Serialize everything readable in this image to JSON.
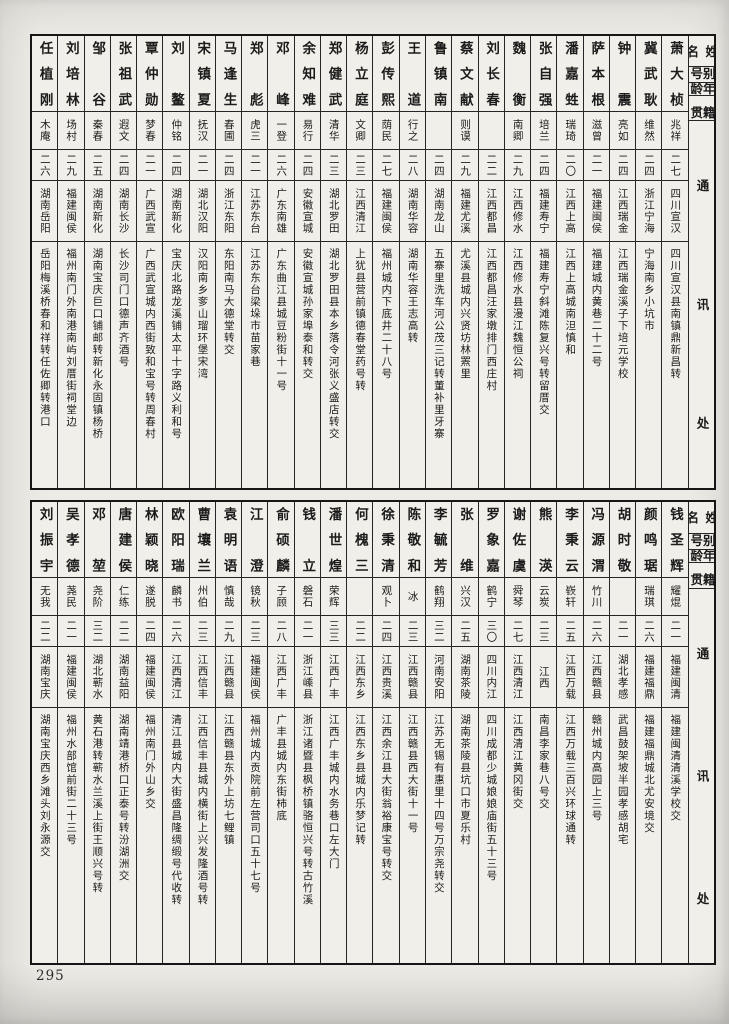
{
  "page": {
    "number": "295"
  },
  "headers": {
    "name": "姓名",
    "alias": "别号",
    "age": "年龄",
    "origin": "籍贯",
    "address": "通讯处"
  },
  "table1": {
    "people": [
      {
        "name": "任植刚",
        "alias": "木庵",
        "age": "二六",
        "origin": "湖南岳阳",
        "address": "岳阳梅溪桥春和祥转任佐卿转港口"
      },
      {
        "name": "刘培林",
        "alias": "场村",
        "age": "二九",
        "origin": "福建闽侯",
        "address": "福州南门外南港南屿刘厝街祠堂边"
      },
      {
        "name": "邹谷",
        "alias": "秦春",
        "age": "二五",
        "origin": "湖南新化",
        "address": "湖南宝庆巨口铺邮转新化永固镇杨桥"
      },
      {
        "name": "张祖武",
        "alias": "遐文",
        "age": "二四",
        "origin": "湖南长沙",
        "address": "长沙司门口德声齐酒号"
      },
      {
        "name": "覃仲勋",
        "alias": "梦春",
        "age": "二一",
        "origin": "广西武宣",
        "address": "广西武宣城内西街致和宝号转周春村"
      },
      {
        "name": "刘鳌",
        "alias": "仲铭",
        "age": "二四",
        "origin": "湖南新化",
        "address": "宝庆北路龙溪铺太平十字路义利和号"
      },
      {
        "name": "宋镇夏",
        "alias": "抚汉",
        "age": "二一",
        "origin": "湖北汉阳",
        "address": "汉阳南乡奓山瑠环堡宋湾"
      },
      {
        "name": "马逢生",
        "alias": "春圃",
        "age": "二四",
        "origin": "浙江东阳",
        "address": "东阳南马大德堂转交"
      },
      {
        "name": "郑彪",
        "alias": "虎三",
        "age": "二一",
        "origin": "江苏东台",
        "address": "江苏东台梁垛市苗家巷"
      },
      {
        "name": "邓峰",
        "alias": "一登",
        "age": "二六",
        "origin": "广东南雄",
        "address": "广东曲江县城豆粉街十一号"
      },
      {
        "name": "余知难",
        "alias": "易行",
        "age": "二四",
        "origin": "安徽宣城",
        "address": "安徽宣城孙家埠泰和转交"
      },
      {
        "name": "郑健武",
        "alias": "清华",
        "age": "二三",
        "origin": "湖北罗田",
        "address": "湖北罗田县本乡落令河张义盛店转交"
      },
      {
        "name": "杨立庭",
        "alias": "文卿",
        "age": "二三",
        "origin": "江西清江",
        "address": "上犹县营前镇德春堂药号转"
      },
      {
        "name": "彭传熙",
        "alias": "荫民",
        "age": "二七",
        "origin": "福建闽侯",
        "address": "福州城内下底井二十八号"
      },
      {
        "name": "王道",
        "alias": "行之",
        "age": "二八",
        "origin": "湖南华容",
        "address": "湖南华容王志高转"
      },
      {
        "name": "鲁镇南",
        "alias": "",
        "age": "二四",
        "origin": "湖南龙山",
        "address": "五寨里洗车河公茂三记转董补里牙寨"
      },
      {
        "name": "蔡文献",
        "alias": "则谟",
        "age": "二九",
        "origin": "福建尤溪",
        "address": "尤溪县城内兴贤坊林罴里"
      },
      {
        "name": "刘长春",
        "alias": "",
        "age": "二二",
        "origin": "江西都昌",
        "address": "江西都昌汪家墩排门西庄村"
      },
      {
        "name": "魏衡",
        "alias": "南卿",
        "age": "二九",
        "origin": "江西修水",
        "address": "江西修水县漫江魏恒公祠"
      },
      {
        "name": "张自强",
        "alias": "培兰",
        "age": "二四",
        "origin": "福建寿宁",
        "address": "福建寿宁斜滩陈复兴号转留厝交"
      },
      {
        "name": "潘嘉甡",
        "alias": "瑞琦",
        "age": "二〇",
        "origin": "江西上高",
        "address": "江西上高城南泹慎和"
      },
      {
        "name": "萨本根",
        "alias": "滋曾",
        "age": "二一",
        "origin": "福建闽侯",
        "address": "福建城内黄巷二十二号"
      },
      {
        "name": "钟震",
        "alias": "亮如",
        "age": "二四",
        "origin": "江西瑞金",
        "address": "江西瑞金溪子下培元学校"
      },
      {
        "name": "冀武耿",
        "alias": "维然",
        "age": "二四",
        "origin": "浙江宁海",
        "address": "宁海南乡小坑市"
      },
      {
        "name": "萧大桢",
        "alias": "兆祥",
        "age": "二七",
        "origin": "四川宣汉",
        "address": "四川宣汉县南镇鼎新昌转"
      }
    ]
  },
  "table2": {
    "people": [
      {
        "name": "刘振宇",
        "alias": "无我",
        "age": "二二",
        "origin": "湖南宝庆",
        "address": "湖南宝庆西乡滩头刘永源交"
      },
      {
        "name": "吴孝德",
        "alias": "荛民",
        "age": "二一",
        "origin": "福建闽侯",
        "address": "福州水部馆前街二十三号"
      },
      {
        "name": "邓堃",
        "alias": "尧阶",
        "age": "三二",
        "origin": "湖北蕲水",
        "address": "黄石港转蕲水兰溪上街王顺兴号转"
      },
      {
        "name": "唐建侯",
        "alias": "仁练",
        "age": "二二",
        "origin": "湖南益阳",
        "address": "湖南靖港桥口正泰号转汾湖洲交"
      },
      {
        "name": "林颖晓",
        "alias": "遂脱",
        "age": "二四",
        "origin": "福建闽侯",
        "address": "福州南门外山乡交"
      },
      {
        "name": "欧阳瑞",
        "alias": "麟书",
        "age": "二六",
        "origin": "江西清江",
        "address": "清江县城内大街盛昌隆绸缎号代收转"
      },
      {
        "name": "曹壤兰",
        "alias": "州伯",
        "age": "二三",
        "origin": "江西信丰",
        "address": "江西信丰县城内横街上兴发隆酒号转"
      },
      {
        "name": "袁明语",
        "alias": "慎哉",
        "age": "二九",
        "origin": "江西赣县",
        "address": "江西赣县东外上坊七鲤镇"
      },
      {
        "name": "江澄",
        "alias": "镜秋",
        "age": "二三",
        "origin": "福建闽侯",
        "address": "福州城内贡院前左营司口五十七号"
      },
      {
        "name": "俞硕麟",
        "alias": "子顾",
        "age": "二八",
        "origin": "江西广丰",
        "address": "广丰县城内东街柿底"
      },
      {
        "name": "钱立",
        "alias": "磐石",
        "age": "二一",
        "origin": "浙江嵊县",
        "address": "浙江诸暨县枫桥镇骆恒兴号转古竹溪"
      },
      {
        "name": "潘世煌",
        "alias": "荣辉",
        "age": "三三",
        "origin": "江西广丰",
        "address": "江西广丰城内水务巷口左大门"
      },
      {
        "name": "何槐三",
        "alias": "",
        "age": "二二",
        "origin": "江西东乡",
        "address": "江西东乡县城内乐梦记转"
      },
      {
        "name": "徐秉清",
        "alias": "观卜",
        "age": "二四",
        "origin": "江西贵溪",
        "address": "江西余江县大街翁裕康宝号转交"
      },
      {
        "name": "陈敬和",
        "alias": "冰",
        "age": "二三",
        "origin": "江西赣县",
        "address": "江西赣县西大街十一号"
      },
      {
        "name": "李毓芳",
        "alias": "鹤翔",
        "age": "三二",
        "origin": "河南安阳",
        "address": "江苏无锡有惠里十四号万宗尧转交"
      },
      {
        "name": "张维",
        "alias": "兴汉",
        "age": "二五",
        "origin": "湖南茶陵",
        "address": "湖南茶陵县坑口市夏乐村"
      },
      {
        "name": "罗象嘉",
        "alias": "鹤宁",
        "age": "三〇",
        "origin": "四川内江",
        "address": "四川成都少城娘娘庙街五十三号"
      },
      {
        "name": "谢佐虞",
        "alias": "舜琴",
        "age": "二七",
        "origin": "江西清江",
        "address": "江西清江黄冈街交"
      },
      {
        "name": "熊渶",
        "alias": "云炭",
        "age": "二三",
        "origin": "江西",
        "address": "南昌李家巷八号交"
      },
      {
        "name": "李秉云",
        "alias": "嵚轩",
        "age": "二五",
        "origin": "江西万载",
        "address": "江西万载三百兴环球通转"
      },
      {
        "name": "冯源渭",
        "alias": "竹川",
        "age": "二六",
        "origin": "江西赣县",
        "address": "赣州城内高园上三号"
      },
      {
        "name": "胡时敬",
        "alias": "",
        "age": "二一",
        "origin": "湖北孝感",
        "address": "武昌鼓架坡半园孝感胡宅"
      },
      {
        "name": "颜鸣琚",
        "alias": "瑞琪",
        "age": "二六",
        "origin": "福建福鼎",
        "address": "福建福鼎城北尤安境交"
      },
      {
        "name": "钱圣辉",
        "alias": "耀焜",
        "age": "二一",
        "origin": "福建闽清",
        "address": "福建闽清清溪学校交"
      }
    ]
  }
}
